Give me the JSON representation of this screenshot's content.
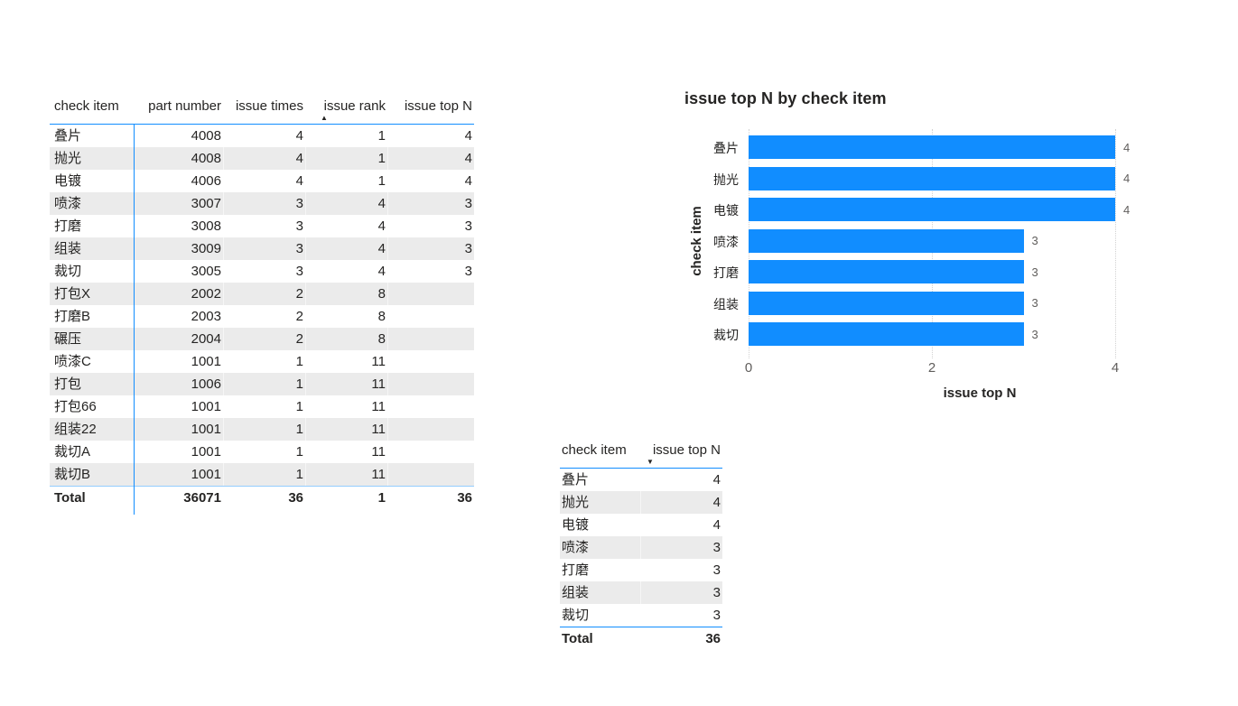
{
  "accent_color": "#118DFF",
  "stripe_color": "#ebebeb",
  "text_color": "#252423",
  "secondary_text_color": "#605E5C",
  "main_table": {
    "columns": [
      "check item",
      "part number",
      "issue times",
      "issue rank",
      "issue top N"
    ],
    "sort": {
      "column": "issue rank",
      "direction": "asc",
      "glyph": "▲"
    },
    "rows": [
      [
        "叠片",
        "4008",
        "4",
        "1",
        "4"
      ],
      [
        "抛光",
        "4008",
        "4",
        "1",
        "4"
      ],
      [
        "电镀",
        "4006",
        "4",
        "1",
        "4"
      ],
      [
        "喷漆",
        "3007",
        "3",
        "4",
        "3"
      ],
      [
        "打磨",
        "3008",
        "3",
        "4",
        "3"
      ],
      [
        "组装",
        "3009",
        "3",
        "4",
        "3"
      ],
      [
        "裁切",
        "3005",
        "3",
        "4",
        "3"
      ],
      [
        "打包X",
        "2002",
        "2",
        "8",
        ""
      ],
      [
        "打磨B",
        "2003",
        "2",
        "8",
        ""
      ],
      [
        "碾压",
        "2004",
        "2",
        "8",
        ""
      ],
      [
        "喷漆C",
        "1001",
        "1",
        "11",
        ""
      ],
      [
        "打包",
        "1006",
        "1",
        "11",
        ""
      ],
      [
        "打包66",
        "1001",
        "1",
        "11",
        ""
      ],
      [
        "组装22",
        "1001",
        "1",
        "11",
        ""
      ],
      [
        "裁切A",
        "1001",
        "1",
        "11",
        ""
      ],
      [
        "裁切B",
        "1001",
        "1",
        "11",
        ""
      ]
    ],
    "total": [
      "Total",
      "36071",
      "36",
      "1",
      "36"
    ]
  },
  "chart_data": {
    "type": "bar",
    "orientation": "horizontal",
    "title": "issue top N by check item",
    "categories": [
      "叠片",
      "抛光",
      "电镀",
      "喷漆",
      "打磨",
      "组装",
      "裁切"
    ],
    "values": [
      4,
      4,
      4,
      3,
      3,
      3,
      3
    ],
    "xlabel": "issue top N",
    "ylabel": "check item",
    "xlim": [
      0,
      4
    ],
    "xticks": [
      0,
      2,
      4
    ],
    "bar_color": "#118DFF",
    "data_labels": true,
    "grid": "dotted",
    "legend": "none"
  },
  "summary_table": {
    "columns": [
      "check item",
      "issue top N"
    ],
    "sort": {
      "column": "issue top N",
      "direction": "desc",
      "glyph": "▼"
    },
    "rows": [
      [
        "叠片",
        "4"
      ],
      [
        "抛光",
        "4"
      ],
      [
        "电镀",
        "4"
      ],
      [
        "喷漆",
        "3"
      ],
      [
        "打磨",
        "3"
      ],
      [
        "组装",
        "3"
      ],
      [
        "裁切",
        "3"
      ]
    ],
    "total": [
      "Total",
      "36"
    ]
  }
}
